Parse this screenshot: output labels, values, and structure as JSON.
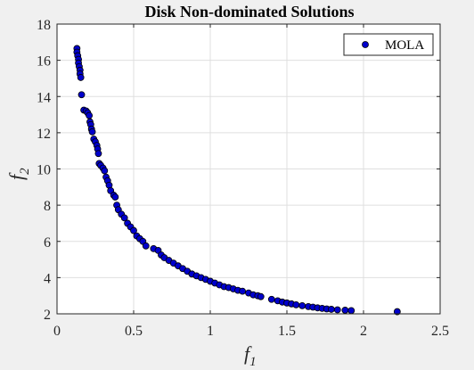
{
  "chart_data": {
    "type": "scatter",
    "title": "Disk Non-dominated Solutions",
    "xlabel": {
      "base": "f",
      "sub": "1"
    },
    "ylabel": {
      "base": "f",
      "sub": "2"
    },
    "xlim": [
      0,
      2.5
    ],
    "ylim": [
      2,
      18
    ],
    "xticks": [
      0,
      0.5,
      1,
      1.5,
      2,
      2.5
    ],
    "xtick_labels": [
      "0",
      "0.5",
      "1",
      "1.5",
      "2",
      "2.5"
    ],
    "yticks": [
      2,
      4,
      6,
      8,
      10,
      12,
      14,
      16,
      18
    ],
    "ytick_labels": [
      "2",
      "4",
      "6",
      "8",
      "10",
      "12",
      "14",
      "16",
      "18"
    ],
    "grid": true,
    "legend_position": "top-right",
    "marker_color": "#0000cc",
    "series": [
      {
        "name": "MOLA",
        "points": [
          [
            0.13,
            16.65
          ],
          [
            0.13,
            16.45
          ],
          [
            0.135,
            16.25
          ],
          [
            0.14,
            16.05
          ],
          [
            0.14,
            15.85
          ],
          [
            0.145,
            15.65
          ],
          [
            0.15,
            15.45
          ],
          [
            0.15,
            15.25
          ],
          [
            0.155,
            15.05
          ],
          [
            0.16,
            14.1
          ],
          [
            0.175,
            13.25
          ],
          [
            0.19,
            13.2
          ],
          [
            0.2,
            13.1
          ],
          [
            0.21,
            12.95
          ],
          [
            0.215,
            12.6
          ],
          [
            0.22,
            12.45
          ],
          [
            0.225,
            12.2
          ],
          [
            0.23,
            12.05
          ],
          [
            0.24,
            11.65
          ],
          [
            0.25,
            11.5
          ],
          [
            0.26,
            11.3
          ],
          [
            0.265,
            11.1
          ],
          [
            0.27,
            10.85
          ],
          [
            0.275,
            10.3
          ],
          [
            0.285,
            10.2
          ],
          [
            0.3,
            10.05
          ],
          [
            0.31,
            9.9
          ],
          [
            0.32,
            9.55
          ],
          [
            0.33,
            9.35
          ],
          [
            0.34,
            9.1
          ],
          [
            0.35,
            8.8
          ],
          [
            0.37,
            8.55
          ],
          [
            0.38,
            8.45
          ],
          [
            0.39,
            8.0
          ],
          [
            0.4,
            7.75
          ],
          [
            0.42,
            7.5
          ],
          [
            0.44,
            7.3
          ],
          [
            0.46,
            7.0
          ],
          [
            0.48,
            6.8
          ],
          [
            0.5,
            6.6
          ],
          [
            0.52,
            6.3
          ],
          [
            0.54,
            6.15
          ],
          [
            0.56,
            6.0
          ],
          [
            0.58,
            5.75
          ],
          [
            0.63,
            5.6
          ],
          [
            0.66,
            5.5
          ],
          [
            0.68,
            5.25
          ],
          [
            0.7,
            5.1
          ],
          [
            0.73,
            4.95
          ],
          [
            0.76,
            4.8
          ],
          [
            0.79,
            4.65
          ],
          [
            0.82,
            4.5
          ],
          [
            0.85,
            4.35
          ],
          [
            0.88,
            4.2
          ],
          [
            0.91,
            4.1
          ],
          [
            0.94,
            4.0
          ],
          [
            0.97,
            3.9
          ],
          [
            1.0,
            3.8
          ],
          [
            1.03,
            3.7
          ],
          [
            1.06,
            3.6
          ],
          [
            1.09,
            3.5
          ],
          [
            1.12,
            3.45
          ],
          [
            1.15,
            3.38
          ],
          [
            1.18,
            3.3
          ],
          [
            1.21,
            3.25
          ],
          [
            1.25,
            3.15
          ],
          [
            1.28,
            3.05
          ],
          [
            1.31,
            3.0
          ],
          [
            1.33,
            2.95
          ],
          [
            1.4,
            2.8
          ],
          [
            1.44,
            2.72
          ],
          [
            1.47,
            2.65
          ],
          [
            1.5,
            2.6
          ],
          [
            1.53,
            2.55
          ],
          [
            1.56,
            2.5
          ],
          [
            1.6,
            2.45
          ],
          [
            1.64,
            2.4
          ],
          [
            1.67,
            2.37
          ],
          [
            1.7,
            2.33
          ],
          [
            1.73,
            2.3
          ],
          [
            1.76,
            2.27
          ],
          [
            1.79,
            2.25
          ],
          [
            1.83,
            2.22
          ],
          [
            1.88,
            2.2
          ],
          [
            1.92,
            2.18
          ],
          [
            2.22,
            2.12
          ]
        ]
      }
    ]
  }
}
